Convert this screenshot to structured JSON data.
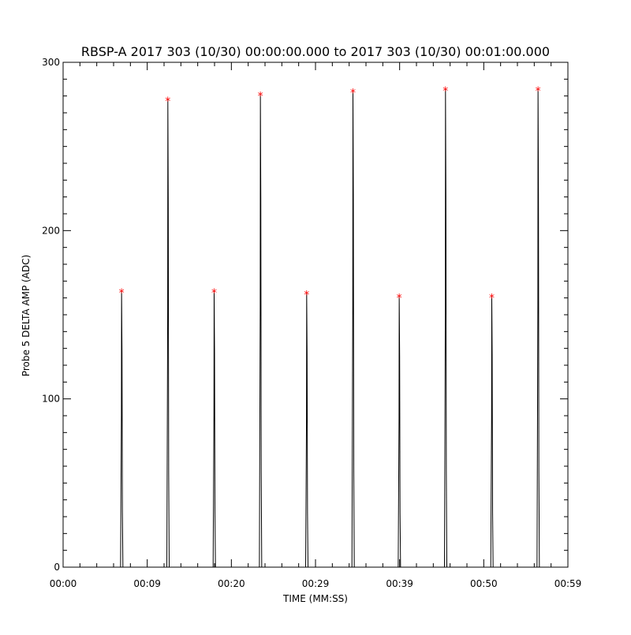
{
  "chart_data": {
    "type": "line",
    "title": "RBSP-A 2017 303 (10/30) 00:00:00.000 to 2017 303 (10/30) 00:01:00.000",
    "xlabel": "TIME (MM:SS)",
    "ylabel": "Probe 5 DELTA AMP (ADC)",
    "xlim_seconds": [
      0,
      60
    ],
    "ylim": [
      0,
      300
    ],
    "x_ticks": [
      {
        "value": 0,
        "label": "00:00"
      },
      {
        "value": 10,
        "label": "00:09"
      },
      {
        "value": 20,
        "label": "00:20"
      },
      {
        "value": 30,
        "label": "00:29"
      },
      {
        "value": 40,
        "label": "00:39"
      },
      {
        "value": 50,
        "label": "00:50"
      },
      {
        "value": 60,
        "label": "00:59"
      }
    ],
    "y_ticks": [
      {
        "value": 0,
        "label": "0"
      },
      {
        "value": 100,
        "label": "100"
      },
      {
        "value": 200,
        "label": "200"
      },
      {
        "value": 300,
        "label": "300"
      }
    ],
    "grid": false,
    "line_color": "#000000",
    "marker_color": "#ff0000",
    "marker_symbol": "*",
    "peaks": [
      {
        "t": 6.95,
        "value": 164
      },
      {
        "t": 12.45,
        "value": 278
      },
      {
        "t": 17.95,
        "value": 164
      },
      {
        "t": 23.45,
        "value": 281
      },
      {
        "t": 28.95,
        "value": 163
      },
      {
        "t": 34.45,
        "value": 283
      },
      {
        "t": 39.95,
        "value": 161
      },
      {
        "t": 45.45,
        "value": 284
      },
      {
        "t": 50.95,
        "value": 161
      },
      {
        "t": 56.45,
        "value": 284
      }
    ]
  }
}
